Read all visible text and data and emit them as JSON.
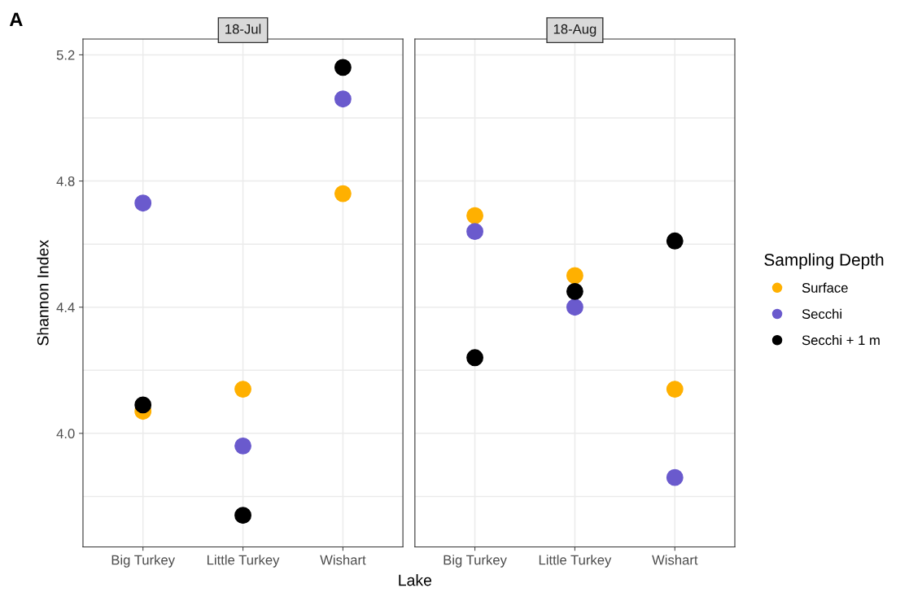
{
  "chart_data": [
    {
      "type": "scatter",
      "title": "18-Jul",
      "ylabel": "Shannon Index",
      "xlabel": "Lake",
      "annotations": [
        "A"
      ],
      "legend_title": "Sampling Depth",
      "legend": "right",
      "categories": [
        "Big Turkey",
        "Little Turkey",
        "Wishart"
      ],
      "ylim": [
        3.64,
        5.25
      ],
      "yticks": [
        {
          "value": 3.8,
          "label": null
        },
        {
          "value": 4.0,
          "label": "4.0"
        },
        {
          "value": 4.2,
          "label": null
        },
        4.4,
        {
          "value": 4.6,
          "label": null
        },
        4.8,
        {
          "value": 5.0,
          "label": null
        },
        5.2
      ],
      "grid": true,
      "marker": "circle",
      "series": [
        {
          "name": "Surface",
          "color": "#ffb000",
          "values": [
            4.07,
            4.14,
            4.76
          ]
        },
        {
          "name": "Secchi",
          "color": "#6a5acd",
          "values": [
            4.73,
            3.96,
            5.06
          ]
        },
        {
          "name": "Secchi + 1 m",
          "color": "#000000",
          "values": [
            4.09,
            3.74,
            5.16
          ]
        }
      ]
    },
    {
      "type": "scatter",
      "title": "18-Aug",
      "tick_labels": "x",
      "categories": [
        "Big Turkey",
        "Little Turkey",
        "Wishart"
      ],
      "ylim": [
        3.64,
        5.25
      ],
      "yticks": [
        3.8,
        4.0,
        4.2,
        4.4,
        4.6,
        4.8,
        5.0,
        5.2
      ],
      "grid": true,
      "marker": "circle",
      "series": [
        {
          "color": "#ffb000",
          "values": [
            4.69,
            4.5,
            4.14
          ]
        },
        {
          "color": "#6a5acd",
          "values": [
            4.64,
            4.4,
            3.86
          ]
        },
        {
          "color": "#000000",
          "values": [
            4.24,
            4.45,
            4.61
          ]
        }
      ]
    }
  ]
}
